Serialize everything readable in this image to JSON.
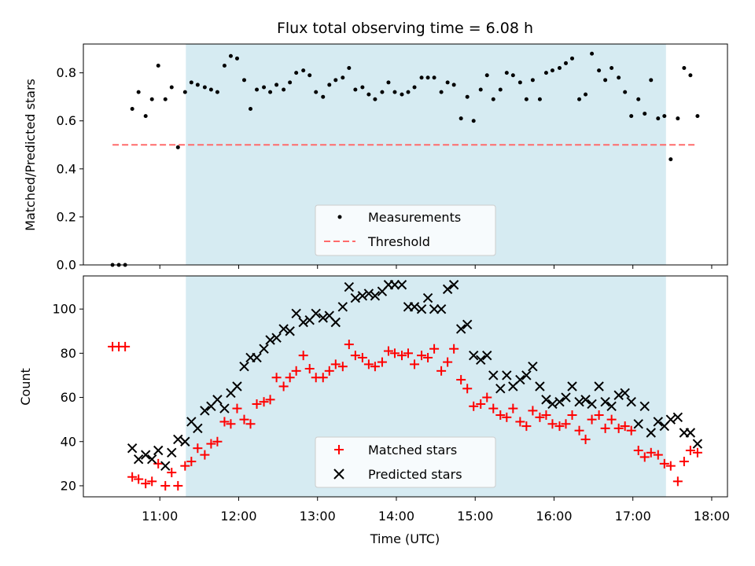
{
  "chart_data": [
    {
      "type": "scatter",
      "title": "Flux total observing time = 6.08 h",
      "ylabel": "Matched/Predicted stars",
      "xlabel": "",
      "ylim": [
        0,
        0.92
      ],
      "yticks": [
        0.0,
        0.2,
        0.4,
        0.6,
        0.8
      ],
      "ytick_labels": [
        "0.0",
        "0.2",
        "0.4",
        "0.6",
        "0.8"
      ],
      "grid": false,
      "legend_position": "bottom-center",
      "observing_window": [
        11.33,
        17.42
      ],
      "observing_window_color": "#add8e6",
      "threshold": {
        "name": "Threshold",
        "value": 0.5,
        "x_range": [
          10.4,
          17.8
        ],
        "color": "#ff6b6b"
      },
      "series": [
        {
          "name": "Measurements",
          "color": "#000000",
          "x": [
            10.4,
            10.48,
            10.56,
            10.65,
            10.73,
            10.82,
            10.9,
            10.98,
            11.07,
            11.15,
            11.23,
            11.32,
            11.4,
            11.48,
            11.57,
            11.65,
            11.73,
            11.82,
            11.9,
            11.98,
            12.07,
            12.15,
            12.23,
            12.32,
            12.4,
            12.48,
            12.57,
            12.65,
            12.73,
            12.82,
            12.9,
            12.98,
            13.07,
            13.15,
            13.23,
            13.32,
            13.4,
            13.48,
            13.57,
            13.65,
            13.73,
            13.82,
            13.9,
            13.98,
            14.07,
            14.15,
            14.23,
            14.32,
            14.4,
            14.48,
            14.57,
            14.65,
            14.73,
            14.82,
            14.9,
            14.98,
            15.07,
            15.15,
            15.23,
            15.32,
            15.4,
            15.48,
            15.57,
            15.65,
            15.73,
            15.82,
            15.9,
            15.98,
            16.07,
            16.15,
            16.23,
            16.32,
            16.4,
            16.48,
            16.57,
            16.65,
            16.73,
            16.82,
            16.9,
            16.98,
            17.07,
            17.15,
            17.23,
            17.32,
            17.4,
            17.48,
            17.57,
            17.65,
            17.73,
            17.82
          ],
          "y": [
            0.0,
            0.0,
            0.0,
            0.65,
            0.72,
            0.62,
            0.69,
            0.83,
            0.69,
            0.74,
            0.49,
            0.72,
            0.76,
            0.75,
            0.74,
            0.73,
            0.72,
            0.83,
            0.87,
            0.86,
            0.77,
            0.65,
            0.73,
            0.74,
            0.72,
            0.75,
            0.73,
            0.76,
            0.8,
            0.81,
            0.79,
            0.72,
            0.7,
            0.75,
            0.77,
            0.78,
            0.82,
            0.73,
            0.74,
            0.71,
            0.69,
            0.72,
            0.76,
            0.72,
            0.71,
            0.72,
            0.74,
            0.78,
            0.78,
            0.78,
            0.72,
            0.76,
            0.75,
            0.61,
            0.7,
            0.6,
            0.73,
            0.79,
            0.69,
            0.73,
            0.8,
            0.79,
            0.76,
            0.69,
            0.77,
            0.69,
            0.8,
            0.81,
            0.82,
            0.84,
            0.86,
            0.69,
            0.71,
            0.88,
            0.81,
            0.77,
            0.82,
            0.78,
            0.72,
            0.62,
            0.69,
            0.63,
            0.77,
            0.61,
            0.62,
            0.44,
            0.61,
            0.82,
            0.79,
            0.62
          ]
        }
      ]
    },
    {
      "type": "scatter",
      "title": "",
      "xlabel": "Time (UTC)",
      "ylabel": "Count",
      "xlim": [
        10.03,
        18.2
      ],
      "ylim": [
        15,
        115
      ],
      "xticks": [
        11,
        12,
        13,
        14,
        15,
        16,
        17,
        18
      ],
      "xtick_labels": [
        "11:00",
        "12:00",
        "13:00",
        "14:00",
        "15:00",
        "16:00",
        "17:00",
        "18:00"
      ],
      "yticks": [
        20,
        40,
        60,
        80,
        100
      ],
      "ytick_labels": [
        "20",
        "40",
        "60",
        "80",
        "100"
      ],
      "grid": false,
      "legend_position": "bottom-center",
      "observing_window": [
        11.33,
        17.42
      ],
      "observing_window_color": "#add8e6",
      "series": [
        {
          "name": "Matched stars",
          "marker": "plus",
          "color": "#ff0000",
          "x": [
            10.4,
            10.48,
            10.56,
            10.65,
            10.73,
            10.82,
            10.9,
            10.98,
            11.07,
            11.15,
            11.23,
            11.32,
            11.4,
            11.48,
            11.57,
            11.65,
            11.73,
            11.82,
            11.9,
            11.98,
            12.07,
            12.15,
            12.23,
            12.32,
            12.4,
            12.48,
            12.57,
            12.65,
            12.73,
            12.82,
            12.9,
            12.98,
            13.07,
            13.15,
            13.23,
            13.32,
            13.4,
            13.48,
            13.57,
            13.65,
            13.73,
            13.82,
            13.9,
            13.98,
            14.07,
            14.15,
            14.23,
            14.32,
            14.4,
            14.48,
            14.57,
            14.65,
            14.73,
            14.82,
            14.9,
            14.98,
            15.07,
            15.15,
            15.23,
            15.32,
            15.4,
            15.48,
            15.57,
            15.65,
            15.73,
            15.82,
            15.9,
            15.98,
            16.07,
            16.15,
            16.23,
            16.32,
            16.4,
            16.48,
            16.57,
            16.65,
            16.73,
            16.82,
            16.9,
            16.98,
            17.07,
            17.15,
            17.23,
            17.32,
            17.4,
            17.48,
            17.57,
            17.65,
            17.73,
            17.82
          ],
          "y": [
            83,
            83,
            83,
            24,
            23,
            21,
            22,
            30,
            20,
            26,
            20,
            29,
            31,
            37,
            34,
            39,
            40,
            49,
            48,
            55,
            50,
            48,
            57,
            58,
            59,
            69,
            65,
            69,
            72,
            79,
            73,
            69,
            69,
            72,
            75,
            74,
            84,
            79,
            78,
            75,
            74,
            76,
            81,
            80,
            79,
            80,
            75,
            79,
            78,
            82,
            72,
            76,
            82,
            68,
            64,
            56,
            57,
            60,
            55,
            52,
            51,
            55,
            49,
            47,
            54,
            51,
            52,
            48,
            47,
            48,
            52,
            45,
            41,
            50,
            52,
            46,
            50,
            46,
            47,
            45,
            36,
            33,
            35,
            34,
            30,
            29,
            22,
            31,
            36,
            35
          ],
          "visible_through": 17.84
        },
        {
          "name": "Predicted stars",
          "marker": "x",
          "color": "#000000",
          "x": [
            10.65,
            10.73,
            10.82,
            10.9,
            10.98,
            11.07,
            11.15,
            11.23,
            11.32,
            11.4,
            11.48,
            11.57,
            11.65,
            11.73,
            11.82,
            11.9,
            11.98,
            12.07,
            12.15,
            12.23,
            12.32,
            12.4,
            12.48,
            12.57,
            12.65,
            12.73,
            12.82,
            12.9,
            12.98,
            13.07,
            13.15,
            13.23,
            13.32,
            13.4,
            13.48,
            13.57,
            13.65,
            13.73,
            13.82,
            13.9,
            13.98,
            14.07,
            14.15,
            14.23,
            14.32,
            14.4,
            14.48,
            14.57,
            14.65,
            14.73,
            14.82,
            14.9,
            14.98,
            15.07,
            15.15,
            15.23,
            15.32,
            15.4,
            15.48,
            15.57,
            15.65,
            15.73,
            15.82,
            15.9,
            15.98,
            16.07,
            16.15,
            16.23,
            16.32,
            16.4,
            16.48,
            16.57,
            16.65,
            16.73,
            16.82,
            16.9,
            16.98,
            17.07,
            17.15,
            17.23,
            17.32,
            17.4,
            17.48,
            17.57,
            17.65,
            17.73,
            17.82
          ],
          "y": [
            37,
            32,
            34,
            32,
            36,
            29,
            35,
            41,
            40,
            49,
            46,
            54,
            56,
            59,
            55,
            62,
            65,
            74,
            78,
            78,
            82,
            86,
            87,
            91,
            90,
            98,
            94,
            95,
            98,
            96,
            97,
            94,
            101,
            110,
            105,
            106,
            107,
            106,
            108,
            111,
            111,
            111,
            101,
            101,
            100,
            105,
            100,
            100,
            109,
            111,
            91,
            93,
            79,
            77,
            79,
            70,
            64,
            70,
            65,
            68,
            70,
            74,
            65,
            59,
            57,
            58,
            60,
            65,
            58,
            59,
            57,
            65,
            58,
            56,
            61,
            62,
            58,
            48,
            56,
            44,
            49,
            47,
            50,
            51,
            44,
            44,
            39
          ]
        }
      ]
    }
  ]
}
